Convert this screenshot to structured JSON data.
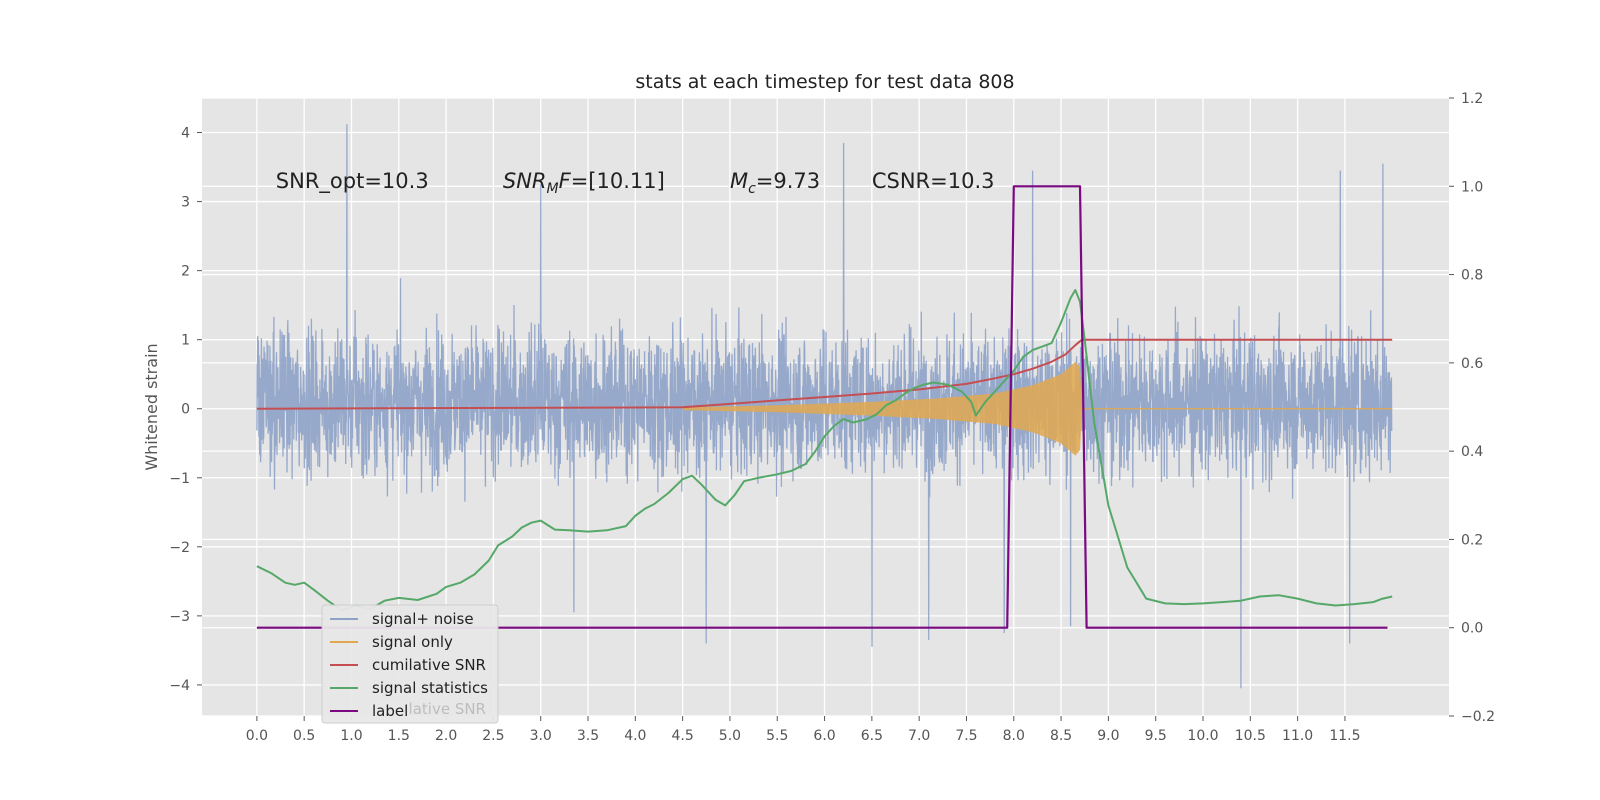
{
  "chart_data": {
    "type": "line",
    "title": "stats at each timestep for test data 808",
    "xlabel": "",
    "ylabel": "Whitened strain",
    "xlim": [
      -0.58,
      12.6
    ],
    "ylim": [
      -4.45,
      4.5
    ],
    "y2lim": [
      -0.2,
      1.2
    ],
    "x_ticks": [
      "0.0",
      "0.5",
      "1.0",
      "1.5",
      "2.0",
      "2.5",
      "3.0",
      "3.5",
      "4.0",
      "4.5",
      "5.0",
      "5.5",
      "6.0",
      "6.5",
      "7.0",
      "7.5",
      "8.0",
      "8.5",
      "9.0",
      "9.5",
      "10.0",
      "10.5",
      "11.0",
      "11.5"
    ],
    "y_ticks": [
      "4",
      "3",
      "2",
      "1",
      "0",
      "−1",
      "−2",
      "−3",
      "−4"
    ],
    "y2_ticks": [
      "1.2",
      "1.0",
      "0.8",
      "0.6",
      "0.4",
      "0.2",
      "0.0",
      "−0.2"
    ],
    "grid": true,
    "legend_position": "lower-left",
    "annotations": [
      {
        "text": "SNR_opt=10.3",
        "x": 0.2,
        "y": 3.3
      },
      {
        "prefix": "SNR",
        "sub": "M",
        "suffix": "F=[10.11]",
        "x": 2.6,
        "y": 3.3
      },
      {
        "prefix": "M",
        "sub": "c",
        "suffix": "=9.73",
        "x": 5.0,
        "y": 3.3
      },
      {
        "text": "CSNR=10.3",
        "x": 6.5,
        "y": 3.3
      }
    ],
    "series": [
      {
        "name": "signal+ noise",
        "color": "#8ea2c8",
        "axis": "left",
        "x_range": [
          0.0,
          12.0
        ],
        "typical_range": [
          -1.5,
          1.7
        ],
        "extreme_range": [
          -4.05,
          4.12
        ],
        "spikes": [
          [
            0.95,
            4.12
          ],
          [
            6.2,
            3.85
          ],
          [
            8.2,
            3.45
          ],
          [
            11.9,
            3.55
          ],
          [
            11.45,
            3.45
          ],
          [
            3.0,
            3.25
          ],
          [
            10.4,
            -4.05
          ],
          [
            4.75,
            -3.4
          ],
          [
            6.5,
            -3.45
          ],
          [
            7.1,
            -3.35
          ],
          [
            11.55,
            -3.4
          ],
          [
            8.6,
            -3.15
          ],
          [
            7.9,
            -3.25
          ],
          [
            3.35,
            -2.95
          ]
        ]
      },
      {
        "name": "signal only",
        "color": "#e0a84f",
        "axis": "left",
        "chirp_start": 4.5,
        "merger": 8.7,
        "end": 12.0,
        "envelope": [
          [
            4.5,
            0.02
          ],
          [
            5.5,
            0.05
          ],
          [
            6.5,
            0.1
          ],
          [
            7.2,
            0.15
          ],
          [
            7.8,
            0.22
          ],
          [
            8.2,
            0.34
          ],
          [
            8.5,
            0.5
          ],
          [
            8.65,
            0.68
          ],
          [
            8.7,
            0.6
          ],
          [
            8.72,
            0.0
          ]
        ]
      },
      {
        "name": "cumilative SNR",
        "color": "#c44e52",
        "axis": "left",
        "points": [
          [
            0.0,
            0.0
          ],
          [
            4.5,
            0.02
          ],
          [
            5.0,
            0.07
          ],
          [
            5.5,
            0.12
          ],
          [
            6.0,
            0.17
          ],
          [
            6.5,
            0.22
          ],
          [
            7.0,
            0.28
          ],
          [
            7.5,
            0.36
          ],
          [
            7.8,
            0.44
          ],
          [
            8.0,
            0.5
          ],
          [
            8.2,
            0.58
          ],
          [
            8.4,
            0.68
          ],
          [
            8.55,
            0.79
          ],
          [
            8.65,
            0.92
          ],
          [
            8.72,
            1.0
          ],
          [
            12.0,
            1.0
          ]
        ]
      },
      {
        "name": "signal statistics",
        "color": "#55a868",
        "axis": "left",
        "points": [
          [
            0.0,
            -2.28
          ],
          [
            0.15,
            -2.38
          ],
          [
            0.3,
            -2.52
          ],
          [
            0.4,
            -2.55
          ],
          [
            0.5,
            -2.52
          ],
          [
            0.6,
            -2.62
          ],
          [
            0.75,
            -2.78
          ],
          [
            0.9,
            -2.92
          ],
          [
            1.05,
            -2.85
          ],
          [
            1.2,
            -2.9
          ],
          [
            1.35,
            -2.78
          ],
          [
            1.5,
            -2.74
          ],
          [
            1.7,
            -2.77
          ],
          [
            1.9,
            -2.68
          ],
          [
            2.0,
            -2.58
          ],
          [
            2.15,
            -2.52
          ],
          [
            2.3,
            -2.4
          ],
          [
            2.45,
            -2.2
          ],
          [
            2.55,
            -1.98
          ],
          [
            2.7,
            -1.85
          ],
          [
            2.8,
            -1.72
          ],
          [
            2.9,
            -1.65
          ],
          [
            3.0,
            -1.62
          ],
          [
            3.15,
            -1.75
          ],
          [
            3.3,
            -1.76
          ],
          [
            3.5,
            -1.78
          ],
          [
            3.7,
            -1.76
          ],
          [
            3.9,
            -1.7
          ],
          [
            4.0,
            -1.55
          ],
          [
            4.1,
            -1.45
          ],
          [
            4.2,
            -1.38
          ],
          [
            4.35,
            -1.22
          ],
          [
            4.5,
            -1.02
          ],
          [
            4.6,
            -0.97
          ],
          [
            4.7,
            -1.1
          ],
          [
            4.85,
            -1.32
          ],
          [
            4.95,
            -1.4
          ],
          [
            5.05,
            -1.25
          ],
          [
            5.15,
            -1.05
          ],
          [
            5.3,
            -1.0
          ],
          [
            5.5,
            -0.95
          ],
          [
            5.65,
            -0.9
          ],
          [
            5.8,
            -0.8
          ],
          [
            5.9,
            -0.62
          ],
          [
            6.0,
            -0.4
          ],
          [
            6.1,
            -0.25
          ],
          [
            6.2,
            -0.15
          ],
          [
            6.3,
            -0.2
          ],
          [
            6.45,
            -0.15
          ],
          [
            6.55,
            -0.08
          ],
          [
            6.65,
            0.05
          ],
          [
            6.75,
            0.12
          ],
          [
            6.85,
            0.22
          ],
          [
            6.95,
            0.3
          ],
          [
            7.05,
            0.35
          ],
          [
            7.15,
            0.38
          ],
          [
            7.3,
            0.35
          ],
          [
            7.45,
            0.25
          ],
          [
            7.55,
            0.1
          ],
          [
            7.6,
            -0.1
          ],
          [
            7.7,
            0.1
          ],
          [
            7.8,
            0.25
          ],
          [
            7.9,
            0.4
          ],
          [
            8.0,
            0.55
          ],
          [
            8.1,
            0.75
          ],
          [
            8.2,
            0.85
          ],
          [
            8.3,
            0.9
          ],
          [
            8.4,
            0.95
          ],
          [
            8.5,
            1.25
          ],
          [
            8.6,
            1.6
          ],
          [
            8.65,
            1.72
          ],
          [
            8.7,
            1.55
          ],
          [
            8.75,
            1.0
          ],
          [
            8.85,
            -0.2
          ],
          [
            9.0,
            -1.4
          ],
          [
            9.2,
            -2.3
          ],
          [
            9.4,
            -2.75
          ],
          [
            9.6,
            -2.82
          ],
          [
            9.8,
            -2.83
          ],
          [
            10.0,
            -2.82
          ],
          [
            10.2,
            -2.8
          ],
          [
            10.4,
            -2.78
          ],
          [
            10.6,
            -2.72
          ],
          [
            10.8,
            -2.7
          ],
          [
            11.0,
            -2.75
          ],
          [
            11.2,
            -2.82
          ],
          [
            11.4,
            -2.85
          ],
          [
            11.6,
            -2.83
          ],
          [
            11.8,
            -2.8
          ],
          [
            11.9,
            -2.75
          ],
          [
            12.0,
            -2.72
          ]
        ]
      },
      {
        "name": "label",
        "color": "#7b0a82",
        "axis": "right",
        "points": [
          [
            0.0,
            0.0
          ],
          [
            7.93,
            0.0
          ],
          [
            8.0,
            1.0
          ],
          [
            8.7,
            1.0
          ],
          [
            8.77,
            0.0
          ],
          [
            11.95,
            0.0
          ]
        ]
      }
    ],
    "legend_ghost_text": "cumilative SNR"
  }
}
